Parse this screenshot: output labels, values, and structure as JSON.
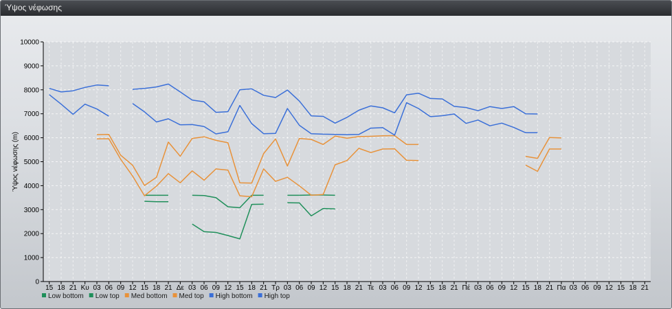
{
  "window": {
    "title": "Ύψος νέφωσης"
  },
  "chart_data": {
    "type": "line",
    "ylabel": "Ύψος νέφωσης (m)",
    "xlabel": "",
    "ylim": [
      0,
      10000
    ],
    "yticks": [
      0,
      1000,
      2000,
      3000,
      4000,
      5000,
      6000,
      7000,
      8000,
      9000,
      10000
    ],
    "grid": true,
    "legend_position": "bottom-left",
    "x_ticks": [
      "15",
      "18",
      "21",
      "Κυ",
      "03",
      "06",
      "09",
      "12",
      "15",
      "18",
      "21",
      "Δε",
      "03",
      "06",
      "09",
      "12",
      "15",
      "18",
      "21",
      "Τρ",
      "03",
      "06",
      "09",
      "12",
      "15",
      "18",
      "21",
      "Τε",
      "03",
      "06",
      "09",
      "12",
      "15",
      "18",
      "21",
      "Πέ",
      "03",
      "06",
      "09",
      "12",
      "15",
      "18",
      "21",
      "Πα",
      "03",
      "06",
      "09",
      "12",
      "15",
      "18",
      "21"
    ],
    "series": [
      {
        "name": "Low bottom",
        "color": "#1f8f5a",
        "values": [
          null,
          null,
          null,
          null,
          null,
          null,
          null,
          null,
          3350,
          3330,
          3330,
          null,
          2400,
          2080,
          2050,
          1920,
          1780,
          3220,
          3230,
          null,
          3290,
          3280,
          2740,
          3050,
          3030,
          null,
          null,
          null,
          null,
          null,
          null,
          null,
          null,
          null,
          null,
          null,
          null,
          null,
          null,
          null,
          null,
          null,
          null,
          null,
          null,
          null,
          null,
          null,
          null,
          null,
          null
        ]
      },
      {
        "name": "Low top",
        "color": "#1f8f5a",
        "values": [
          null,
          null,
          null,
          null,
          null,
          null,
          null,
          null,
          3600,
          3600,
          3600,
          null,
          3600,
          3590,
          3500,
          3120,
          3080,
          3600,
          3600,
          null,
          3600,
          3600,
          3610,
          3610,
          3600,
          null,
          null,
          null,
          null,
          null,
          null,
          null,
          null,
          null,
          null,
          null,
          null,
          null,
          null,
          null,
          null,
          null,
          null,
          null,
          null,
          null,
          null,
          null,
          null,
          null,
          null
        ]
      },
      {
        "name": "Med bottom",
        "color": "#e8923a",
        "values": [
          null,
          null,
          null,
          null,
          5950,
          5960,
          5100,
          4400,
          3580,
          3980,
          4500,
          4120,
          4620,
          4230,
          4700,
          4650,
          3580,
          3540,
          4700,
          4180,
          4350,
          3990,
          3600,
          3630,
          4870,
          5050,
          5560,
          5380,
          5530,
          5540,
          5060,
          5050,
          null,
          null,
          null,
          null,
          null,
          null,
          null,
          null,
          4860,
          4600,
          5530,
          5530,
          null,
          null,
          null,
          null,
          null,
          null,
          null
        ]
      },
      {
        "name": "Med top",
        "color": "#e8923a",
        "values": [
          null,
          null,
          null,
          null,
          6130,
          6140,
          5270,
          4850,
          4010,
          4350,
          5820,
          5230,
          5970,
          6040,
          5890,
          5790,
          4120,
          4110,
          5340,
          5950,
          4820,
          5970,
          5930,
          5720,
          6070,
          5980,
          6050,
          6060,
          6080,
          6090,
          5720,
          5720,
          null,
          null,
          null,
          null,
          null,
          null,
          null,
          null,
          5220,
          5140,
          6010,
          5990,
          null,
          null,
          null,
          null,
          null,
          null,
          null
        ]
      },
      {
        "name": "High bottom",
        "color": "#3a6fd8",
        "values": [
          7800,
          7400,
          6980,
          7400,
          7200,
          6900,
          null,
          7430,
          7080,
          6660,
          6790,
          6540,
          6550,
          6470,
          6160,
          6250,
          7350,
          6590,
          6170,
          6180,
          7220,
          6520,
          6170,
          6150,
          6140,
          6130,
          6140,
          6400,
          6420,
          6110,
          7460,
          7220,
          6880,
          6920,
          6990,
          6600,
          6740,
          6500,
          6610,
          6430,
          6210,
          6210,
          null,
          null,
          null,
          null,
          null,
          null,
          null,
          null,
          null
        ]
      },
      {
        "name": "High top",
        "color": "#3a6fd8",
        "values": [
          8060,
          7910,
          7960,
          8100,
          8200,
          8170,
          null,
          8020,
          8060,
          8120,
          8240,
          7910,
          7570,
          7500,
          7060,
          7090,
          8000,
          8040,
          7770,
          7680,
          7990,
          7530,
          6910,
          6890,
          6610,
          6850,
          7150,
          7330,
          7250,
          7040,
          7790,
          7860,
          7640,
          7620,
          7310,
          7260,
          7130,
          7300,
          7220,
          7300,
          7000,
          6990,
          null,
          null,
          null,
          null,
          null,
          null,
          null,
          null,
          null
        ]
      }
    ]
  }
}
